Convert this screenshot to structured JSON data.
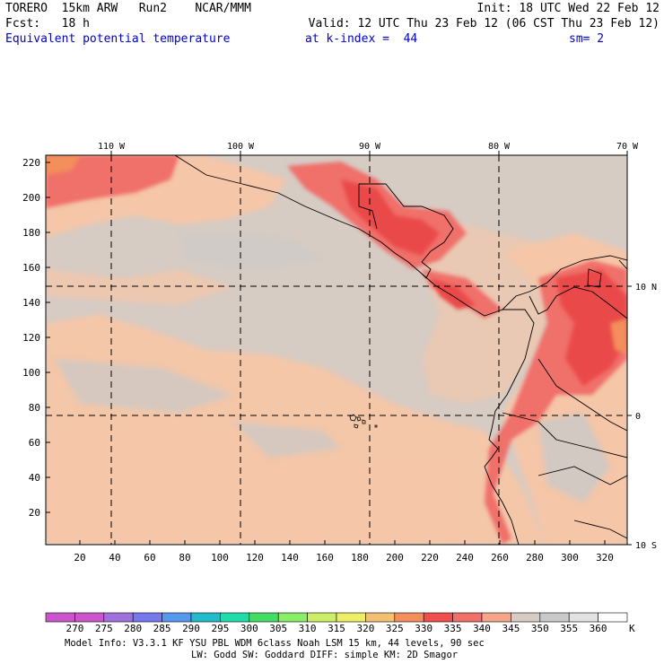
{
  "header": {
    "model": "TORERO  15km ARW   Run2    NCAR/MMM",
    "init": "Init: 18 UTC Wed 22 Feb 12",
    "fcst": "Fcst:   18 h",
    "valid": "Valid: 12 UTC Thu 23 Feb 12 (06 CST Thu 23 Feb 12)",
    "field": "Equivalent potential temperature",
    "level": "at k-index =  44",
    "smooth": "sm= 2"
  },
  "map": {
    "top_lon_labels": [
      "110 W",
      "100 W",
      "90 W",
      "80 W",
      "70 W"
    ],
    "right_lat_labels": [
      "10 N",
      "0",
      "10 S"
    ],
    "left_grid_labels": [
      "220",
      "200",
      "180",
      "160",
      "140",
      "120",
      "100",
      "80",
      "60",
      "40",
      "20"
    ],
    "bottom_grid_labels": [
      "20",
      "40",
      "60",
      "80",
      "100",
      "120",
      "140",
      "160",
      "180",
      "200",
      "220",
      "240",
      "260",
      "280",
      "300",
      "320"
    ]
  },
  "colorbar": {
    "values": [
      "270",
      "275",
      "280",
      "285",
      "290",
      "295",
      "300",
      "305",
      "310",
      "315",
      "320",
      "325",
      "330",
      "335",
      "340",
      "345",
      "350",
      "355",
      "360"
    ],
    "unit": "K",
    "colors": [
      "#cc55cc",
      "#a070dd",
      "#7777ee",
      "#5599ee",
      "#22bbcc",
      "#22ddaa",
      "#44dd66",
      "#88ee66",
      "#ccee66",
      "#eeee66",
      "#f2c070",
      "#f28f5a",
      "#f04f4f",
      "#f0706a",
      "#f5a58a",
      "#d6ccc4",
      "#c9c9c9",
      "#e2e2e2",
      "#ffffff"
    ]
  },
  "footer": {
    "line1": "Model Info: V3.3.1    KF      YSU PBL  WDM 6class  Noah LSM  15 km,   44 levels,   90 sec",
    "line2": "LW: Godd SW: Goddard DIFF: simple KM: 2D Smagor"
  }
}
